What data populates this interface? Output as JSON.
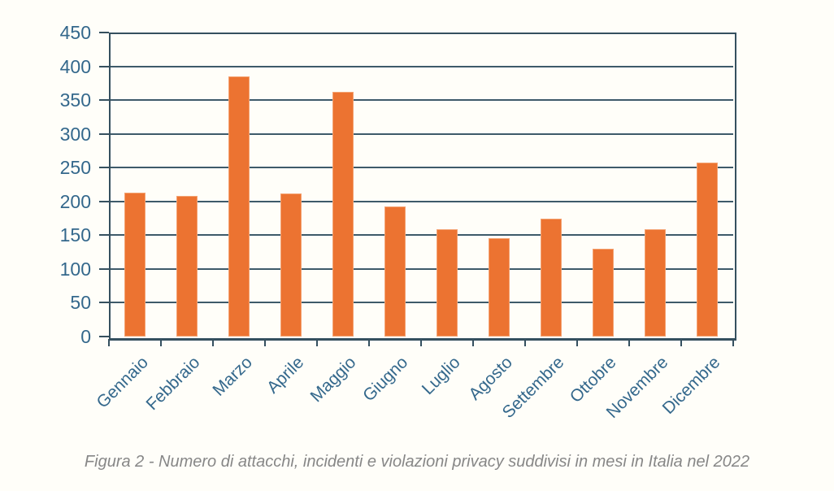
{
  "figure": {
    "caption": "Figura 2 - Numero di attacchi, incidenti e violazioni privacy suddivisi in mesi in Italia nel 2022"
  },
  "colors": {
    "bar": "#EC7331",
    "axis": "#35505F",
    "grid": "#3E5A6A",
    "tick_label": "#34688C",
    "caption": "#878787",
    "background": "#FFFEF9"
  },
  "chart_data": {
    "type": "bar",
    "categories": [
      "Gennaio",
      "Febbraio",
      "Marzo",
      "Aprile",
      "Maggio",
      "Giugno",
      "Luglio",
      "Agosto",
      "Settembre",
      "Ottobre",
      "Novembre",
      "Dicembre"
    ],
    "values": [
      213,
      208,
      385,
      212,
      362,
      192,
      159,
      145,
      175,
      130,
      159,
      257
    ],
    "title": "",
    "xlabel": "",
    "ylabel": "",
    "ylim": [
      0,
      450
    ],
    "yticks": [
      0,
      50,
      100,
      150,
      200,
      250,
      300,
      350,
      400,
      450
    ],
    "grid": true,
    "legend": false,
    "bar_orientation": "vertical"
  }
}
